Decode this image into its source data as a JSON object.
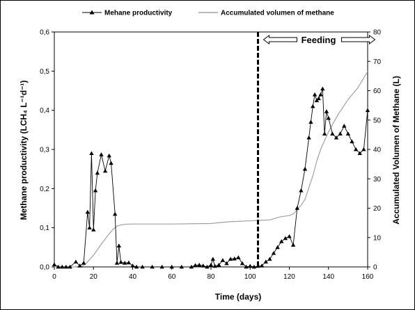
{
  "chart_data": {
    "type": "line",
    "title": "",
    "xlabel": "Time (days)",
    "ylabel_left": "Methane productivity (LCH₄ L⁻¹d⁻¹)",
    "ylabel_right": "Accumulated Volumen of Methane (L)",
    "xlim": [
      0,
      160
    ],
    "ylim_left": [
      0,
      0.6
    ],
    "ylim_right": [
      0,
      80
    ],
    "x_ticks": [
      "0",
      "20",
      "40",
      "60",
      "80",
      "100",
      "120",
      "140",
      "160"
    ],
    "y_left_ticks": [
      "0,0",
      "0,1",
      "0,2",
      "0,3",
      "0,4",
      "0,5",
      "0,6"
    ],
    "y_right_ticks": [
      "0",
      "10",
      "20",
      "30",
      "40",
      "50",
      "60",
      "70",
      "80"
    ],
    "grid": false,
    "legend_position": "top",
    "annotation": {
      "text": "Feeding",
      "x": 104
    },
    "series": [
      {
        "name": "Mehane productivity",
        "axis": "left",
        "color": "#000000",
        "marker": "triangle",
        "x": [
          0,
          2,
          4,
          6,
          8,
          11,
          13,
          15,
          17,
          18,
          19,
          20,
          21,
          22,
          24,
          26,
          28,
          29,
          31,
          32,
          33,
          34,
          36,
          38,
          40,
          42,
          45,
          50,
          55,
          60,
          65,
          70,
          72,
          74,
          76,
          78,
          80,
          81,
          82,
          84,
          86,
          88,
          90,
          92,
          94,
          96,
          98,
          100,
          102,
          104,
          106,
          108,
          110,
          112,
          114,
          116,
          118,
          120,
          122,
          124,
          126,
          128,
          130,
          131,
          132,
          133,
          134,
          135,
          136,
          137,
          138,
          139,
          140,
          142,
          144,
          146,
          148,
          150,
          152,
          154,
          156,
          158,
          160
        ],
        "y": [
          0.006,
          0.0,
          0.0,
          0.0,
          0.0,
          0.013,
          0.003,
          0.01,
          0.14,
          0.1,
          0.29,
          0.095,
          0.195,
          0.24,
          0.287,
          0.245,
          0.284,
          0.265,
          0.135,
          0.01,
          0.054,
          0.012,
          0.01,
          0.011,
          0.003,
          0.0,
          0.0,
          0.0,
          0.0,
          0.0,
          0.0,
          0.0,
          0.004,
          0.005,
          0.003,
          0.0,
          0.005,
          0.02,
          0.002,
          0.005,
          0.017,
          0.009,
          0.02,
          0.021,
          0.024,
          0.009,
          0.0,
          0.002,
          0.0,
          0.002,
          0.003,
          0.013,
          0.02,
          0.035,
          0.05,
          0.065,
          0.073,
          0.078,
          0.056,
          0.15,
          0.195,
          0.25,
          0.33,
          0.37,
          0.41,
          0.44,
          0.425,
          0.43,
          0.44,
          0.455,
          0.34,
          0.397,
          0.38,
          0.34,
          0.33,
          0.34,
          0.36,
          0.34,
          0.32,
          0.3,
          0.29,
          0.3,
          0.4
        ]
      },
      {
        "name": "Accumulated volumen of methane",
        "axis": "right",
        "color": "#a0a0a0",
        "marker": "none",
        "x": [
          0,
          10,
          14,
          16,
          18,
          20,
          22,
          24,
          26,
          28,
          30,
          32,
          34,
          36,
          40,
          50,
          60,
          70,
          80,
          90,
          100,
          104,
          110,
          115,
          120,
          122,
          124,
          126,
          128,
          130,
          132,
          134,
          136,
          138,
          140,
          145,
          150,
          155,
          160
        ],
        "y": [
          0,
          0,
          0.2,
          1.0,
          2.5,
          4.0,
          5.8,
          7.8,
          9.5,
          11.3,
          12.8,
          13.9,
          14.3,
          14.5,
          14.6,
          14.6,
          14.6,
          14.7,
          14.8,
          15.4,
          15.7,
          15.8,
          16.0,
          17.0,
          17.5,
          18.0,
          19.5,
          21.0,
          23.0,
          27.0,
          31.0,
          36.0,
          40.0,
          43.0,
          46.0,
          52.0,
          57.0,
          61.0,
          66.5
        ]
      }
    ]
  }
}
